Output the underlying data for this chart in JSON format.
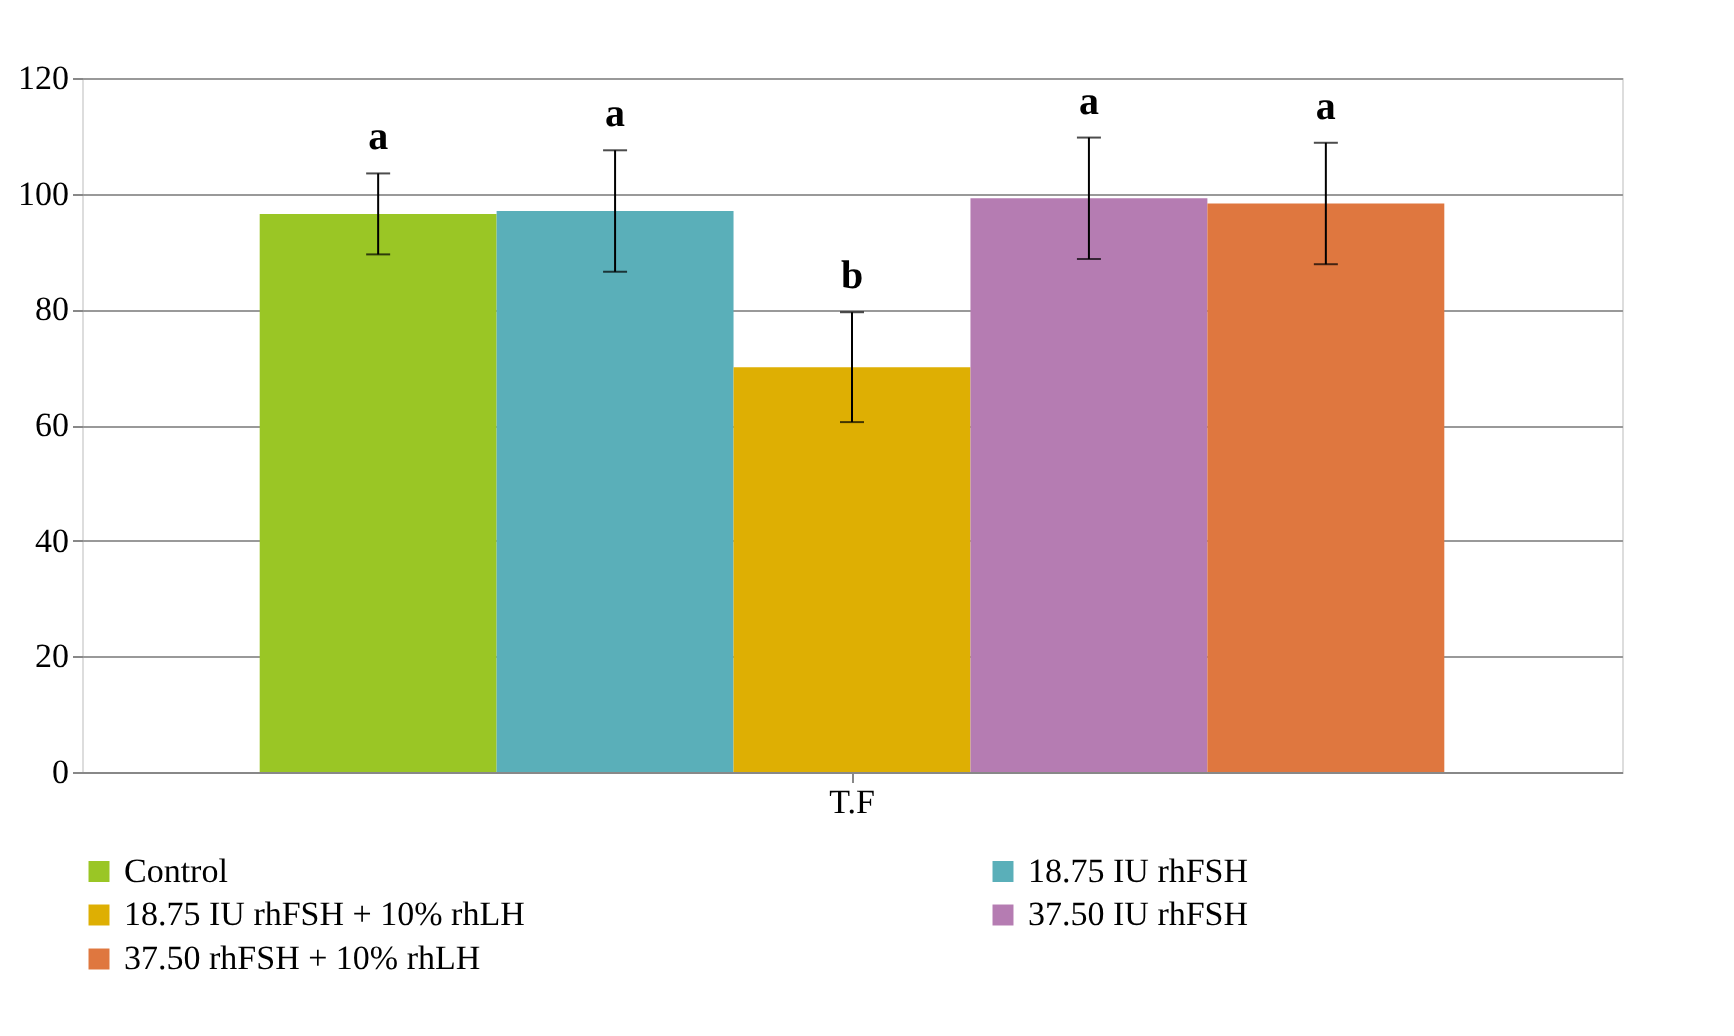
{
  "chart_data": {
    "type": "bar",
    "categories": [
      "T.F"
    ],
    "ylim": [
      0,
      120
    ],
    "yticks": [
      0,
      20,
      40,
      60,
      80,
      100,
      120
    ],
    "grid": "y",
    "legend": "bottom",
    "series": [
      {
        "name": "Control",
        "color": "#9ac625",
        "values": [
          96.5
        ],
        "errors": [
          7
        ]
      },
      {
        "name": "18.75 IU rhFSH",
        "color": "#5aafb9",
        "values": [
          97
        ],
        "errors": [
          10.5
        ]
      },
      {
        "name": "18.75 IU rhFSH + 10% rhLH",
        "color": "#deaf03",
        "values": [
          70
        ],
        "errors": [
          9.5
        ]
      },
      {
        "name": "37.50 IU rhFSH",
        "color": "#b57cb2",
        "values": [
          99.2
        ],
        "errors": [
          10.5
        ]
      },
      {
        "name": "37.50 rhFSH + 10% rhLH",
        "color": "#df773f",
        "values": [
          98.3
        ],
        "errors": [
          10.5
        ]
      }
    ],
    "annotations": [
      "a",
      "a",
      "b",
      "a",
      "a"
    ]
  }
}
